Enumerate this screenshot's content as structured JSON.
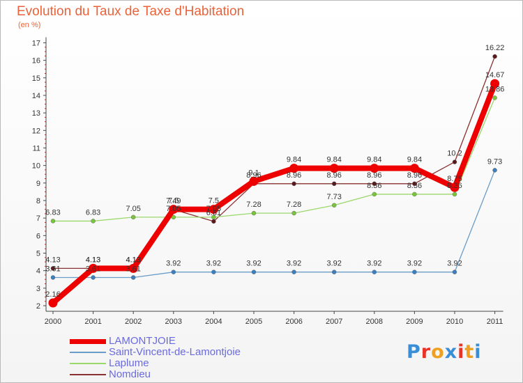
{
  "title": "Evolution du Taux de Taxe d'Habitation",
  "subtitle": "(en %)",
  "logo": {
    "letters": [
      "P",
      "r",
      "o",
      "x",
      "i",
      "t",
      "i"
    ],
    "colors": [
      "#3a8ed8",
      "#e8332a",
      "#f0a020",
      "#3a8ed8",
      "#e8332a",
      "#f0a020",
      "#3a8ed8"
    ]
  },
  "chart_data": {
    "type": "line",
    "title": "Evolution du Taux de Taxe d'Habitation",
    "ylabel": "(en %)",
    "x": [
      "2000",
      "2001",
      "2002",
      "2003",
      "2004",
      "2005",
      "2006",
      "2007",
      "2008",
      "2009",
      "2010",
      "2011"
    ],
    "ylim": [
      2,
      17
    ],
    "yticks": [
      2,
      3,
      4,
      5,
      6,
      7,
      8,
      9,
      10,
      11,
      12,
      13,
      14,
      15,
      16,
      17
    ],
    "grid": false,
    "legend_position": "bottom-left",
    "series": [
      {
        "name": "Nomdieu",
        "color": "#8b3030",
        "dot": "#5a1818",
        "width": 1.3,
        "values": [
          4.13,
          4.13,
          4.13,
          7.49,
          6.81,
          8.96,
          8.96,
          8.96,
          8.96,
          8.96,
          10.2,
          16.22
        ],
        "labels": [
          "4.13",
          "4.13",
          "4.13",
          "7.49",
          "6.81",
          "8.96",
          "8.96",
          "8.96",
          "8.96",
          "8.96",
          "10.2",
          "16.22"
        ]
      },
      {
        "name": "Laplume",
        "color": "#9ad86a",
        "dot": "#7ac63a",
        "width": 1.3,
        "values": [
          6.83,
          6.83,
          7.05,
          7.05,
          7.05,
          7.28,
          7.28,
          7.73,
          8.36,
          8.36,
          8.36,
          13.86
        ],
        "labels": [
          "6.83",
          "6.83",
          "7.05",
          "7.05",
          "7.05",
          "7.28",
          "7.28",
          "7.73",
          "8.36",
          "8.36",
          "8.36",
          "13.86"
        ]
      },
      {
        "name": "Saint-Vincent-de-Lamontjoie",
        "color": "#6a9cc8",
        "dot": "#3a80c0",
        "width": 1.3,
        "values": [
          3.61,
          3.61,
          3.61,
          3.92,
          3.92,
          3.92,
          3.92,
          3.92,
          3.92,
          3.92,
          3.92,
          9.73
        ],
        "labels": [
          "3.61",
          "3.61",
          "3.61",
          "3.92",
          "3.92",
          "3.92",
          "3.92",
          "3.92",
          "3.92",
          "3.92",
          "3.92",
          "9.73"
        ]
      },
      {
        "name": "LAMONTJOIE",
        "color": "#ee0000",
        "dot": "#ee0000",
        "width": 8,
        "values": [
          2.16,
          4.13,
          4.13,
          7.5,
          7.5,
          9.1,
          9.84,
          9.84,
          9.84,
          9.84,
          8.75,
          14.67
        ],
        "labels": [
          "2.16",
          "4.13",
          "4.13",
          "7.5",
          "7.5",
          "9.1",
          "9.84",
          "9.84",
          "9.84",
          "9.84",
          "8.75",
          "14.67"
        ]
      }
    ],
    "legend": [
      "LAMONTJOIE",
      "Saint-Vincent-de-Lamontjoie",
      "Laplume",
      "Nomdieu"
    ]
  }
}
